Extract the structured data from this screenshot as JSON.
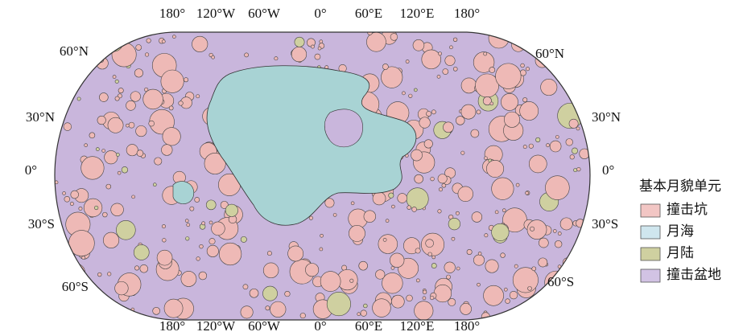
{
  "map": {
    "top_labels": [
      "180°",
      "120°W",
      "60°W",
      "0°",
      "60°E",
      "120°E",
      "180°"
    ],
    "bottom_labels": [
      "180°",
      "120°W",
      "60°W",
      "0°",
      "60°E",
      "120°E",
      "180°"
    ],
    "left_labels": [
      "60°N",
      "30°N",
      "0°",
      "30°S",
      "60°S"
    ],
    "right_labels": [
      "60°N",
      "30°N",
      "0°",
      "30°S",
      "60°S"
    ]
  },
  "legend": {
    "title": "基本月貌单元",
    "items": [
      {
        "label": "撞击坑",
        "color": "#f2c6c4"
      },
      {
        "label": "月海",
        "color": "#cfe6ee"
      },
      {
        "label": "月陆",
        "color": "#cfd0a0"
      },
      {
        "label": "撞击盆地",
        "color": "#d2c3e4"
      }
    ]
  }
}
